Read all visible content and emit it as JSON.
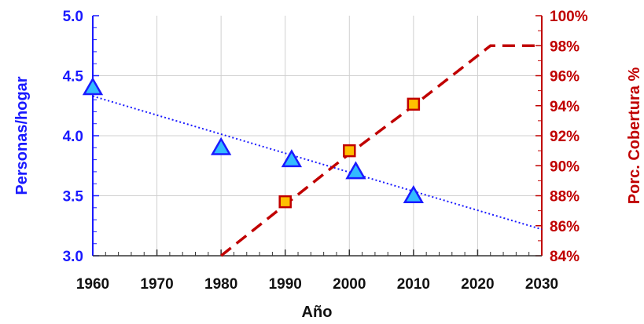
{
  "chart_data": {
    "type": "line",
    "title": "",
    "xlabel": "Año",
    "ylabel_left": "Personas/hogar",
    "ylabel_right": "Porc. Cobertura %",
    "xlim": [
      1960,
      2030
    ],
    "ylim_left": [
      3.0,
      5.0
    ],
    "ylim_right": [
      84,
      100
    ],
    "x_ticks": [
      "1960",
      "1970",
      "1980",
      "1990",
      "2000",
      "2010",
      "2020",
      "2030"
    ],
    "y_left_ticks": [
      "3.0",
      "3.5",
      "4.0",
      "4.5",
      "5.0"
    ],
    "y_right_ticks": [
      "84%",
      "86%",
      "88%",
      "90%",
      "92%",
      "94%",
      "96%",
      "98%",
      "100%"
    ],
    "grid": true,
    "series": [
      {
        "axis": "left",
        "marker": "triangle",
        "points": [
          {
            "x": 1960,
            "y": 4.4
          },
          {
            "x": 1980,
            "y": 3.9
          },
          {
            "x": 1991,
            "y": 3.8
          },
          {
            "x": 2001,
            "y": 3.7
          },
          {
            "x": 2010,
            "y": 3.5
          }
        ],
        "color": "#1a1aff",
        "fill": "#33bbff"
      },
      {
        "axis": "left",
        "kind": "trend",
        "style": "dotted",
        "points": [
          {
            "x": 1960,
            "y": 4.33
          },
          {
            "x": 2030,
            "y": 3.22
          }
        ],
        "color": "#1a1aff"
      },
      {
        "axis": "right",
        "marker": "square",
        "points": [
          {
            "x": 1990,
            "y": 87.6
          },
          {
            "x": 2000,
            "y": 91.0
          },
          {
            "x": 2010,
            "y": 94.1
          }
        ],
        "color": "#c00000",
        "fill": "#ffbf00"
      },
      {
        "axis": "right",
        "kind": "trend",
        "style": "dashed",
        "points": [
          {
            "x": 1980,
            "y": 84.0
          },
          {
            "x": 1990,
            "y": 87.4
          },
          {
            "x": 2000,
            "y": 90.8
          },
          {
            "x": 2010,
            "y": 94.0
          },
          {
            "x": 2022,
            "y": 98.0
          },
          {
            "x": 2030,
            "y": 98.0
          }
        ],
        "color": "#c00000"
      }
    ]
  }
}
